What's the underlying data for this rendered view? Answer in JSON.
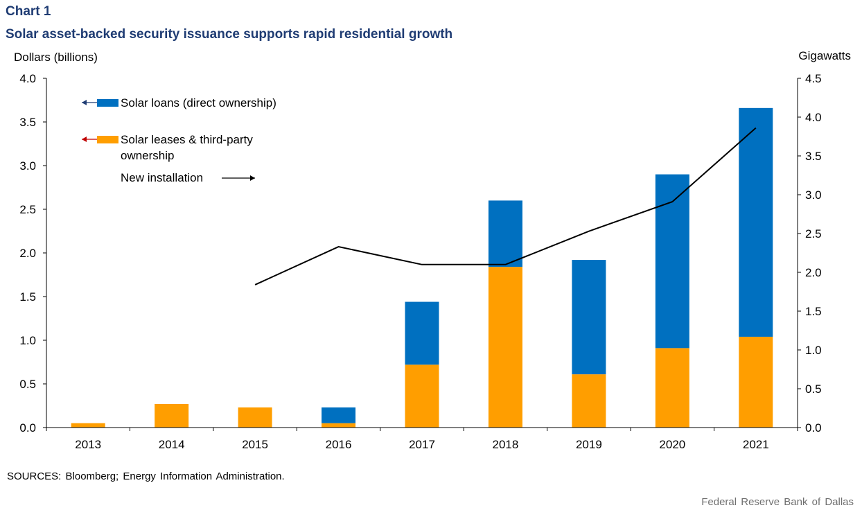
{
  "header": {
    "chart_number": "Chart 1",
    "title": "Solar asset-backed security issuance supports rapid residential growth"
  },
  "footer": {
    "sources": "SOURCES: Bloomberg; Energy Information Administration.",
    "credit": "Federal Reserve Bank of Dallas"
  },
  "chart_data": {
    "type": "bar",
    "stacked": true,
    "categories": [
      "2013",
      "2014",
      "2015",
      "2016",
      "2017",
      "2018",
      "2019",
      "2020",
      "2021"
    ],
    "series": [
      {
        "name": "Solar leases & third-party ownership",
        "legend_lines": [
          "Solar leases & third-party",
          "ownership"
        ],
        "axis": "left",
        "kind": "bar",
        "color": "#FF9E00",
        "arrow_color": "#C00000",
        "values": [
          0.05,
          0.27,
          0.23,
          0.05,
          0.72,
          1.84,
          0.61,
          0.91,
          1.04
        ]
      },
      {
        "name": "Solar loans (direct ownership)",
        "legend_lines": [
          "Solar loans (direct ownership)"
        ],
        "axis": "left",
        "kind": "bar",
        "color": "#0070C0",
        "arrow_color": "#1F3C73",
        "values": [
          0,
          0,
          0,
          0.18,
          0.72,
          0.76,
          1.31,
          1.99,
          2.62
        ]
      },
      {
        "name": "New installation",
        "legend_lines": [
          "New installation"
        ],
        "axis": "right",
        "kind": "line",
        "color": "#000000",
        "values": [
          null,
          null,
          1.84,
          2.33,
          2.1,
          2.1,
          2.53,
          2.91,
          3.86
        ]
      }
    ],
    "y_left": {
      "label": "Dollars (billions)",
      "range": [
        0,
        4
      ],
      "ticks": [
        "0.0",
        "0.5",
        "1.0",
        "1.5",
        "2.0",
        "2.5",
        "3.0",
        "3.5",
        "4.0"
      ]
    },
    "y_right": {
      "label": "Gigawatts",
      "range": [
        0,
        4.5
      ],
      "ticks": [
        "0.0",
        "0.5",
        "1.0",
        "1.5",
        "2.0",
        "2.5",
        "3.0",
        "3.5",
        "4.0",
        "4.5"
      ]
    },
    "grid": false,
    "legend_position": "top-left"
  }
}
